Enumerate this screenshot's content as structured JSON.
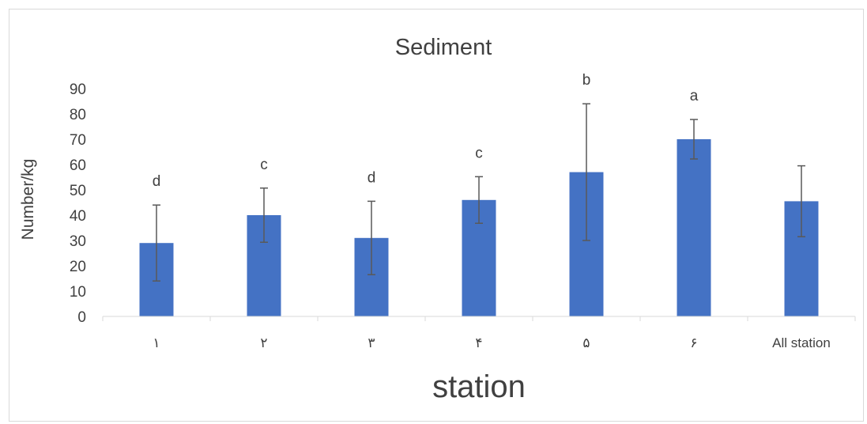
{
  "chart_data": {
    "type": "bar",
    "title": "Sediment",
    "xlabel": "station",
    "ylabel": "Number/kg",
    "categories": [
      "۱",
      "۲",
      "۳",
      "۴",
      "۵",
      "۶",
      "All station"
    ],
    "values": [
      29,
      40,
      31,
      46,
      57,
      70,
      45.5
    ],
    "error": [
      15,
      10.7,
      14.5,
      9.2,
      27,
      7.8,
      14
    ],
    "significance": [
      "d",
      "c",
      "d",
      "c",
      "b",
      "a",
      ""
    ],
    "ylim": [
      0,
      90
    ],
    "yticks": [
      0,
      10,
      20,
      30,
      40,
      50,
      60,
      70,
      80,
      90
    ],
    "bar_color": "#4472c4",
    "error_color": "#595959",
    "grid": false,
    "legend": "none"
  }
}
